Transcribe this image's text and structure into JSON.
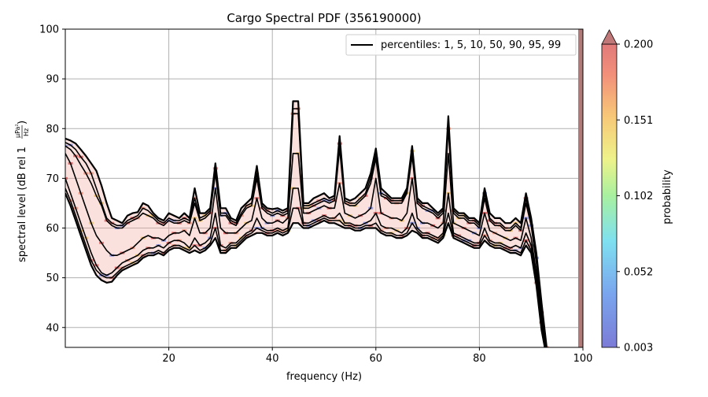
{
  "chart_data": {
    "type": "line",
    "title": "Cargo Spectral PDF (356190000)",
    "xlabel": "frequency (Hz)",
    "ylabel": "spectral level (dB rel 1",
    "ylabel_unit_num": "μPa²",
    "ylabel_unit_den": "Hz",
    "ylabel_close": ")",
    "xlim": [
      0,
      100
    ],
    "ylim": [
      36,
      100
    ],
    "xticks": [
      20,
      40,
      60,
      80,
      100
    ],
    "yticks": [
      40,
      50,
      60,
      70,
      80,
      90,
      100
    ],
    "grid": true,
    "legend": {
      "label": "percentiles: 1, 5, 10, 50, 90, 95, 99",
      "placement": "top-right"
    },
    "colorbar": {
      "label": "probability",
      "ticks": [
        "0.003",
        "0.052",
        "0.102",
        "0.151",
        "0.200"
      ],
      "extend": "max"
    },
    "x": [
      0,
      1,
      2,
      3,
      4,
      5,
      6,
      7,
      8,
      9,
      10,
      11,
      12,
      13,
      14,
      15,
      16,
      17,
      18,
      19,
      20,
      21,
      22,
      23,
      24,
      25,
      26,
      27,
      28,
      29,
      30,
      31,
      32,
      33,
      34,
      35,
      36,
      37,
      38,
      39,
      40,
      41,
      42,
      43,
      44,
      45,
      46,
      47,
      48,
      49,
      50,
      51,
      52,
      53,
      54,
      55,
      56,
      57,
      58,
      59,
      60,
      61,
      62,
      63,
      64,
      65,
      66,
      67,
      68,
      69,
      70,
      71,
      72,
      73,
      74,
      75,
      76,
      77,
      78,
      79,
      80,
      81,
      82,
      83,
      84,
      85,
      86,
      87,
      88,
      89,
      90,
      91,
      92,
      93
    ],
    "series": [
      {
        "values": [
          78,
          77.6,
          77,
          75.8,
          74.5,
          73,
          71.5,
          68.5,
          65,
          62,
          61.5,
          61,
          62.5,
          63,
          63.2,
          65,
          64.5,
          63,
          62,
          61.5,
          63,
          62.5,
          62,
          63,
          62,
          68,
          63,
          63,
          64,
          73,
          64,
          64,
          62,
          61.5,
          64,
          65,
          66,
          72.5,
          65,
          64,
          63.8,
          64,
          63.5,
          64,
          85.5,
          85.5,
          65,
          65,
          66,
          66.5,
          67,
          66,
          66.5,
          78.5,
          66,
          65.5,
          66,
          67,
          68,
          71,
          76,
          68,
          67,
          66,
          66,
          66,
          68,
          76.5,
          66,
          65,
          65,
          64,
          63,
          64,
          82.5,
          64,
          63,
          63,
          62,
          62,
          61,
          68,
          63,
          62,
          62,
          61,
          61,
          62,
          61,
          67,
          62,
          55,
          45,
          36
        ]
      },
      {
        "values": [
          77.2,
          76.7,
          75.8,
          74.3,
          73,
          71,
          68,
          65,
          62,
          61,
          60.5,
          60.5,
          61.5,
          62,
          62.5,
          64,
          63.5,
          62.5,
          61.5,
          61,
          62,
          61.5,
          61.5,
          62,
          61.5,
          66,
          62,
          62.5,
          63.5,
          72,
          63,
          63,
          61.5,
          61,
          63,
          64.5,
          65,
          71,
          64.5,
          63.5,
          63,
          63.5,
          63,
          63.5,
          84,
          84,
          64.5,
          64.5,
          65,
          65.5,
          66,
          65.5,
          66,
          77,
          65.5,
          65,
          65,
          66,
          67,
          70,
          75,
          67,
          66.5,
          65.5,
          65.5,
          65.5,
          67.5,
          75.5,
          65.5,
          64.5,
          64,
          63.5,
          62.5,
          63.5,
          81,
          63.5,
          62.5,
          62.5,
          61.5,
          61.5,
          60.5,
          67,
          62,
          61,
          61,
          60,
          60,
          61,
          60,
          66,
          61,
          54,
          44,
          35
        ]
      },
      {
        "values": [
          76.5,
          75.8,
          74.5,
          72.7,
          71,
          69,
          66.5,
          64.5,
          61.5,
          60.5,
          60,
          60,
          61,
          61.5,
          62,
          63,
          62.5,
          62,
          61,
          60.5,
          61.5,
          61,
          61,
          61.5,
          61,
          65,
          61.5,
          62,
          63,
          71,
          62.5,
          62.5,
          61,
          60.5,
          62.5,
          64,
          64.5,
          70,
          64,
          63,
          62.5,
          63,
          62.5,
          63,
          83,
          83,
          64,
          64,
          64.5,
          65,
          65.5,
          65,
          65.5,
          76,
          65,
          64.5,
          64.5,
          65.5,
          66.5,
          69,
          74,
          66.5,
          66,
          65,
          65,
          65,
          67,
          74.5,
          65,
          64,
          63.5,
          63,
          62,
          63,
          80,
          63,
          62,
          62,
          61,
          61,
          60,
          66,
          61.5,
          60.5,
          60.5,
          59.5,
          59.5,
          60.5,
          59.5,
          65,
          60.5,
          53,
          43,
          34
        ]
      },
      {
        "values": [
          75,
          73,
          70,
          67,
          64,
          61,
          58.5,
          57,
          55.5,
          54.5,
          54.5,
          55,
          55.5,
          56,
          57,
          58,
          58.5,
          58,
          58,
          57.5,
          58.5,
          59,
          59,
          59.5,
          58.5,
          62,
          59,
          59,
          60,
          68,
          60,
          59,
          59,
          59,
          60,
          61,
          61.5,
          66,
          62,
          61,
          61,
          61.5,
          61,
          62,
          75,
          75,
          63,
          63,
          63.5,
          64,
          64.5,
          64,
          64,
          69,
          63,
          62.5,
          62,
          62.5,
          63,
          64,
          70,
          63,
          62.5,
          62,
          62,
          61.5,
          63,
          70,
          62,
          61,
          61,
          60.5,
          60,
          61,
          75,
          61,
          60.5,
          60,
          59.5,
          59,
          58.5,
          63,
          59.5,
          59,
          58.5,
          58,
          57.5,
          58,
          57.5,
          62,
          58,
          51,
          42,
          36
        ]
      },
      {
        "values": [
          70,
          67,
          64,
          61,
          58,
          55,
          52.5,
          51,
          50.5,
          51,
          52,
          53,
          53.5,
          54,
          54.5,
          55.5,
          56,
          56,
          56.5,
          56,
          57,
          57.5,
          57.5,
          57,
          56,
          58,
          56.5,
          57,
          58,
          63,
          56.5,
          56,
          57,
          57,
          58,
          59,
          59.5,
          62,
          60,
          59.5,
          59.5,
          60,
          59.5,
          60,
          68,
          68,
          61,
          61,
          61.5,
          62,
          62.5,
          62,
          62,
          63,
          61,
          61,
          60.5,
          60.5,
          61,
          61.5,
          63,
          60.5,
          60,
          60,
          59.5,
          59,
          60,
          63,
          60,
          59,
          59,
          58.5,
          58,
          59,
          67,
          59,
          58.5,
          58,
          57.5,
          57,
          57,
          60,
          57.5,
          57,
          57,
          56.5,
          56,
          56.5,
          56,
          59,
          56.5,
          50,
          41,
          35
        ]
      },
      {
        "values": [
          68,
          65.5,
          62.5,
          59.5,
          56.5,
          53.5,
          51.5,
          50.5,
          50,
          50,
          51,
          52,
          52.5,
          53,
          53.5,
          54.5,
          55,
          55,
          55.5,
          55,
          56,
          56.5,
          56.5,
          56,
          55.5,
          56.5,
          55.5,
          56,
          57,
          60,
          55.5,
          55.5,
          56.5,
          56.5,
          57.5,
          58.5,
          59,
          60,
          59.5,
          59,
          59,
          59.5,
          59,
          59.5,
          64,
          64,
          60.5,
          60.5,
          61,
          61.5,
          62,
          61.5,
          61.5,
          61.5,
          60.5,
          60.5,
          60,
          60,
          60.5,
          60.5,
          61,
          59.5,
          59,
          59,
          58.5,
          58.5,
          59,
          61,
          59.5,
          58.5,
          58.5,
          58,
          57.5,
          58.5,
          63,
          58.5,
          58,
          57.5,
          57,
          56.5,
          56.5,
          58.5,
          57,
          56.5,
          56.5,
          56,
          55.5,
          55.5,
          55,
          57.5,
          55.5,
          49,
          40,
          34.5
        ]
      },
      {
        "values": [
          67,
          64.5,
          61.5,
          58.5,
          55.5,
          52.5,
          50.5,
          49.5,
          49,
          49.2,
          50.5,
          51.5,
          52,
          52.5,
          53,
          54,
          54.5,
          54.5,
          55,
          54.5,
          55.5,
          56,
          56,
          55.5,
          55,
          55.5,
          55,
          55.5,
          56.5,
          58,
          55,
          55,
          56,
          56,
          57,
          58,
          58.5,
          59,
          59,
          58.5,
          58.5,
          59,
          58.5,
          59,
          61,
          61,
          60,
          60,
          60.5,
          61,
          61.5,
          61,
          61,
          60.5,
          60,
          60,
          59.5,
          59.5,
          60,
          60,
          60,
          59,
          58.5,
          58.5,
          58,
          58,
          58.5,
          59.5,
          59,
          58,
          58,
          57.5,
          57,
          58,
          61,
          58,
          57.5,
          57,
          56.5,
          56,
          56,
          57.5,
          56.5,
          56,
          56,
          55.5,
          55,
          55,
          54.5,
          56.5,
          55,
          48.5,
          39.5,
          34
        ]
      }
    ]
  }
}
